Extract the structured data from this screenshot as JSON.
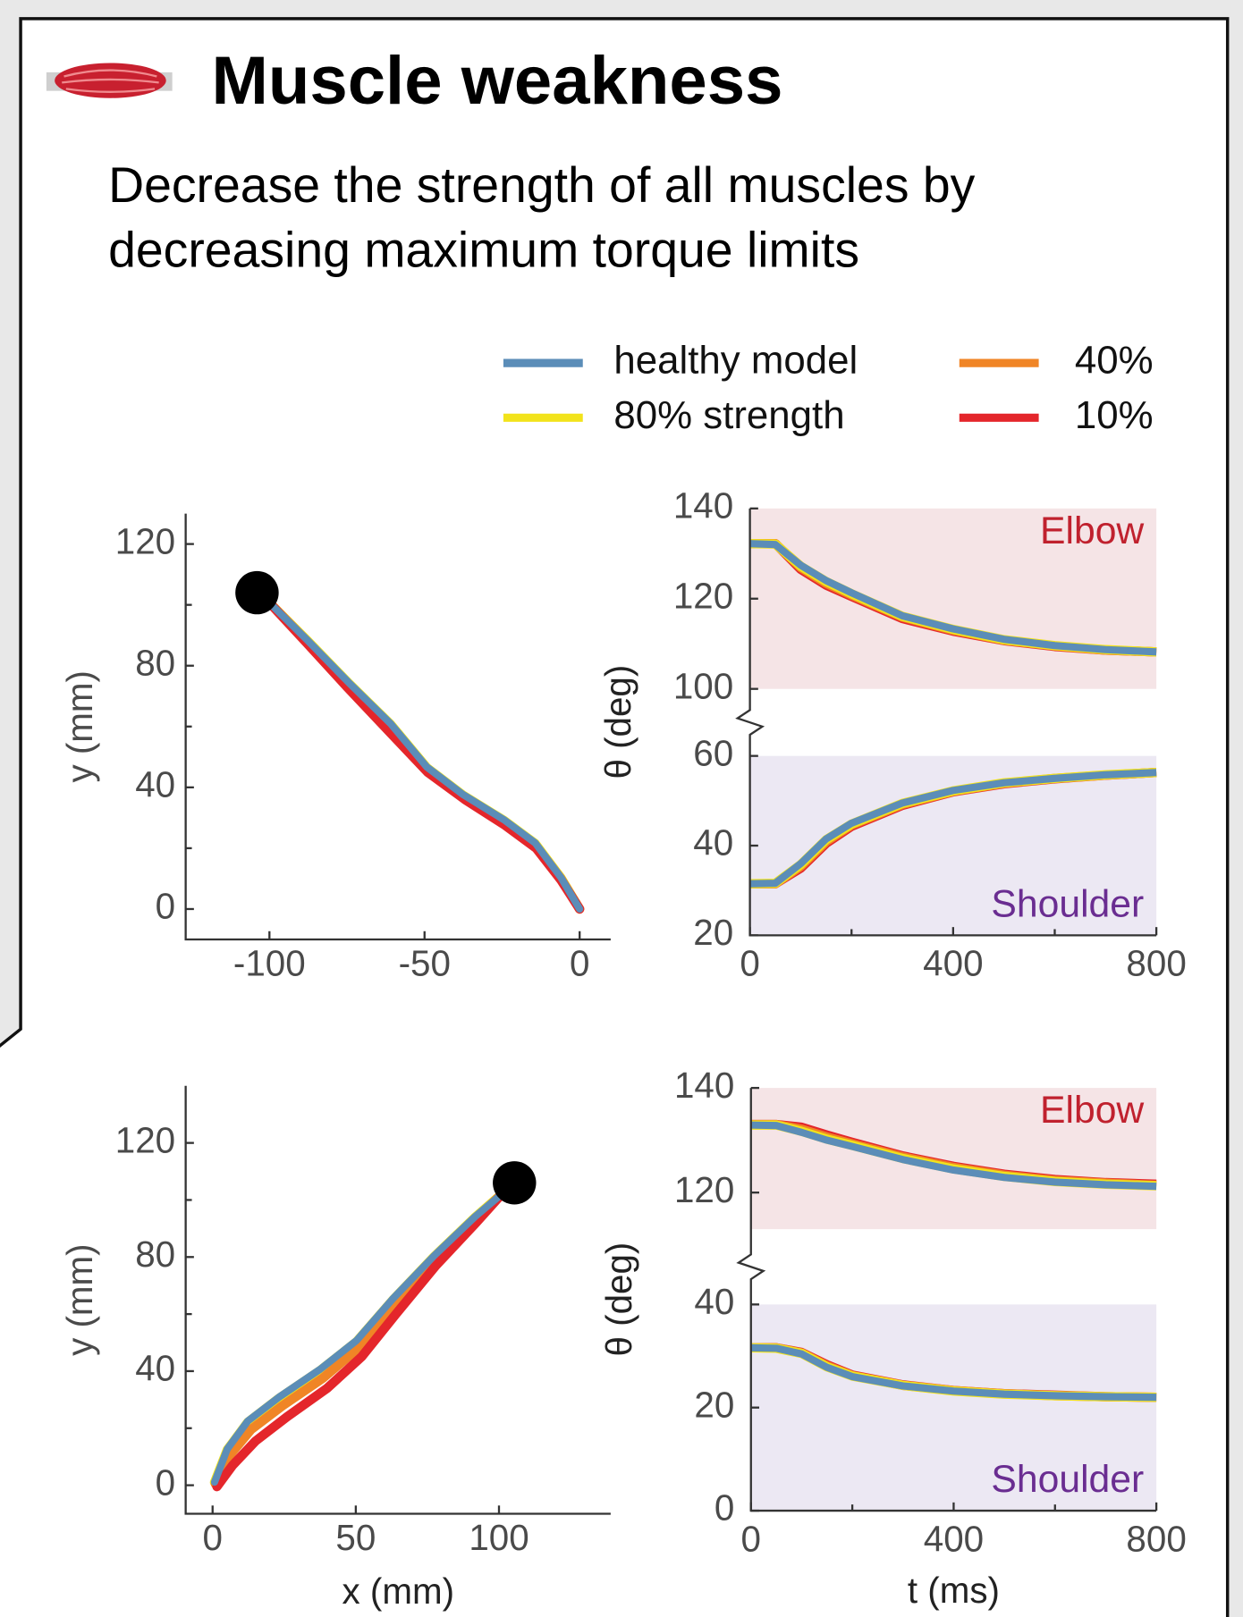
{
  "header": {
    "title": "Muscle weakness",
    "subtitle": [
      "Decrease the strength of all muscles by",
      "decreasing maximum torque limits"
    ]
  },
  "chart_data": [
    {
      "type": "line",
      "xlim": [
        -127,
        10
      ],
      "ylim": [
        -10,
        130
      ],
      "xticks": [
        -100,
        -50,
        0
      ],
      "yticks": [
        0,
        40,
        80,
        120
      ],
      "y_minor_ticks": [
        20,
        60,
        100
      ],
      "ylabel": "y (mm)",
      "target": {
        "x": -104,
        "y": 104
      },
      "series": [
        {
          "name": "healthy model",
          "color": "#5b8db8",
          "x": [
            0,
            -6,
            -14.3,
            -24.3,
            -37.7,
            -49.3,
            -61,
            -74.3,
            -87.7,
            -100.3
          ],
          "values": [
            0,
            10.3,
            21.7,
            29.3,
            37.7,
            46.7,
            61,
            74.3,
            88.3,
            101
          ]
        },
        {
          "name": "80% strength",
          "color": "#f2e31b",
          "x": [
            0,
            -6,
            -14.3,
            -24.3,
            -37.7,
            -49.3,
            -61,
            -74.3,
            -87.7,
            -100.3
          ],
          "values": [
            0,
            10.2,
            21.5,
            29.1,
            37.5,
            46.5,
            60.8,
            74.1,
            88.2,
            101
          ]
        },
        {
          "name": "40%",
          "color": "#f08526",
          "x": [
            0,
            -6,
            -14.2,
            -24.2,
            -37.4,
            -49.2,
            -61.5,
            -74.6,
            -87.8,
            -100.3
          ],
          "values": [
            0,
            9.9,
            20.9,
            28.4,
            36.9,
            45.9,
            60,
            73.7,
            87.9,
            101
          ]
        },
        {
          "name": "10%",
          "color": "#e4262b",
          "x": [
            0,
            -6,
            -14,
            -24,
            -37,
            -49,
            -62,
            -75,
            -88,
            -100.3
          ],
          "values": [
            0,
            9.5,
            20,
            27.5,
            36,
            45,
            59,
            73,
            87.5,
            101
          ]
        }
      ]
    },
    {
      "type": "angles",
      "ylabel": "θ (deg)",
      "xlim": [
        0,
        800
      ],
      "xticks": [
        0,
        400,
        800
      ],
      "x_minor_ticks": [
        200,
        600
      ],
      "x": [
        0,
        50,
        100,
        150,
        200,
        300,
        400,
        500,
        600,
        700,
        800
      ],
      "panels": [
        {
          "label": "Elbow",
          "label_color": "#c0212e",
          "shade": "#f5e4e6",
          "ylim": [
            100,
            140
          ],
          "yticks": [
            100,
            120,
            140
          ],
          "series": [
            {
              "color": "#e4262b",
              "values": [
                132.2,
                132.2,
                126.5,
                123,
                120.5,
                115.6,
                112.8,
                110.7,
                109.4,
                108.6,
                108.2
              ]
            },
            {
              "color": "#f08526",
              "values": [
                132.2,
                132.2,
                126.9,
                123.4,
                120.8,
                115.9,
                113,
                110.8,
                109.5,
                108.6,
                108.2
              ]
            },
            {
              "color": "#f2e31b",
              "values": [
                132.2,
                132.1,
                127.2,
                123.8,
                121.1,
                116.1,
                113.2,
                110.9,
                109.6,
                108.7,
                108.2
              ]
            },
            {
              "color": "#5b8db8",
              "values": [
                132.2,
                132,
                127.4,
                124,
                121.3,
                116.2,
                113.3,
                111,
                109.6,
                108.7,
                108.2
              ]
            }
          ]
        },
        {
          "label": "Shoulder",
          "label_color": "#6a2d91",
          "shade": "#ece8f3",
          "ylim": [
            20,
            60
          ],
          "yticks": [
            20,
            40,
            60
          ],
          "series": [
            {
              "color": "#e4262b",
              "values": [
                31.5,
                31.5,
                35,
                40.5,
                44.3,
                49,
                52,
                53.8,
                54.9,
                55.7,
                56.3
              ]
            },
            {
              "color": "#f08526",
              "values": [
                31.5,
                31.5,
                35.4,
                40.9,
                44.6,
                49.2,
                52.1,
                53.9,
                55,
                55.7,
                56.3
              ]
            },
            {
              "color": "#f2e31b",
              "values": [
                31.5,
                31.6,
                35.8,
                41.3,
                44.8,
                49.4,
                52.2,
                54,
                55,
                55.8,
                56.3
              ]
            },
            {
              "color": "#5b8db8",
              "values": [
                31.5,
                31.6,
                36,
                41.5,
                45,
                49.5,
                52.3,
                54,
                55,
                55.8,
                56.3
              ]
            }
          ]
        }
      ]
    },
    {
      "type": "line",
      "xlim": [
        -9.4,
        139
      ],
      "ylim": [
        -10,
        140
      ],
      "xticks": [
        0,
        50,
        100
      ],
      "yticks": [
        0,
        40,
        80,
        120
      ],
      "y_minor_ticks": [
        20,
        60,
        100
      ],
      "ylabel": "y (mm)",
      "xlabel": "x (mm)",
      "target": {
        "x": 105.4,
        "y": 106
      },
      "series": [
        {
          "color": "#5b8db8",
          "x": [
            0.7,
            5.1,
            12.3,
            23.1,
            37.5,
            50.2,
            62.8,
            77.3,
            91.7,
            101.1
          ],
          "values": [
            1.1,
            12.7,
            22.5,
            30.8,
            40.6,
            50.7,
            65.2,
            80.4,
            94.2,
            102.2
          ]
        },
        {
          "color": "#f2e31b",
          "x": [
            0.7,
            5.1,
            12.3,
            23.1,
            37.5,
            50.2,
            62.8,
            77.3,
            91.7,
            101.1
          ],
          "values": [
            1,
            12.4,
            22.1,
            30.4,
            40.2,
            50.3,
            64.8,
            80.1,
            94,
            102.2
          ]
        },
        {
          "color": "#f08526",
          "x": [
            1,
            5.8,
            13.4,
            24.3,
            38.6,
            51,
            63.3,
            77.6,
            91.8,
            101.1
          ],
          "values": [
            0.4,
            10.3,
            19.5,
            27.8,
            37.6,
            48.2,
            62.8,
            79,
            93.3,
            102.2
          ]
        },
        {
          "color": "#e4262b",
          "x": [
            1.5,
            7,
            15,
            26,
            40,
            52,
            64,
            78,
            92,
            101.1
          ],
          "values": [
            -0.5,
            7,
            15.5,
            24,
            34,
            45,
            60,
            77,
            92,
            102.2
          ]
        }
      ]
    },
    {
      "type": "angles",
      "ylabel": "θ (deg)",
      "xlabel": "t (ms)",
      "xlim": [
        0,
        800
      ],
      "xticks": [
        0,
        400,
        800
      ],
      "x_minor_ticks": [
        200,
        600
      ],
      "x": [
        0,
        50,
        100,
        150,
        200,
        300,
        400,
        500,
        600,
        700,
        800
      ],
      "panels": [
        {
          "label": "Elbow",
          "label_color": "#c0212e",
          "shade": "#f5e4e6",
          "ylim": [
            113,
            140
          ],
          "yticks": [
            120,
            140
          ],
          "series": [
            {
              "color": "#e4262b",
              "values": [
                133,
                133,
                132.5,
                131,
                129.6,
                127,
                125,
                123.5,
                122.5,
                121.9,
                121.6
              ]
            },
            {
              "color": "#f08526",
              "values": [
                133,
                133,
                132.1,
                130.6,
                129.3,
                126.8,
                124.8,
                123.3,
                122.3,
                121.8,
                121.4
              ]
            },
            {
              "color": "#f2e31b",
              "values": [
                132.9,
                132.9,
                131.7,
                130.2,
                129,
                126.5,
                124.5,
                123.1,
                122.1,
                121.6,
                121.3
              ]
            },
            {
              "color": "#5b8db8",
              "values": [
                132.9,
                132.8,
                131.5,
                130,
                128.8,
                126.3,
                124.3,
                122.9,
                122,
                121.5,
                121.2
              ]
            }
          ]
        },
        {
          "label": "Shoulder",
          "label_color": "#6a2d91",
          "shade": "#ece8f3",
          "ylim": [
            0,
            40
          ],
          "yticks": [
            0,
            20,
            40
          ],
          "series": [
            {
              "color": "#e4262b",
              "values": [
                31.6,
                31.6,
                30.7,
                28.3,
                26.3,
                24.4,
                23.3,
                22.7,
                22.4,
                22.1,
                22
              ]
            },
            {
              "color": "#f08526",
              "values": [
                31.6,
                31.6,
                30.6,
                28.1,
                26.2,
                24.3,
                23.3,
                22.7,
                22.3,
                22.1,
                22
              ]
            },
            {
              "color": "#f2e31b",
              "values": [
                31.6,
                31.5,
                30.5,
                27.9,
                26.1,
                24.3,
                23.2,
                22.6,
                22.3,
                22.1,
                22
              ]
            },
            {
              "color": "#5b8db8",
              "values": [
                31.6,
                31.5,
                30.4,
                27.8,
                26,
                24.2,
                23.2,
                22.6,
                22.3,
                22.1,
                22
              ]
            }
          ]
        }
      ]
    }
  ]
}
